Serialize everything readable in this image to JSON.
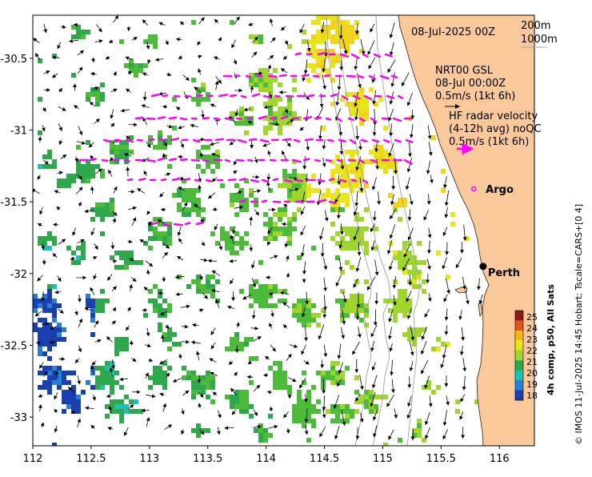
{
  "map": {
    "lon_ticks": [
      "112",
      "112.5",
      "113",
      "113.5",
      "114",
      "114.5",
      "115",
      "115.5",
      "116"
    ],
    "lat_ticks": [
      "-30.5",
      "-31",
      "-31.5",
      "-32",
      "-32.5",
      "-33"
    ],
    "lon_range": [
      112,
      116.3
    ],
    "lat_range": [
      -33.2,
      -30.2
    ],
    "date_label": "08-Jul-2025 00Z",
    "depth_legend": [
      "200m",
      "1000m"
    ],
    "gsl_title": "NRT00 GSL",
    "gsl_time": "08-Jul 00:00Z",
    "gsl_scale": "0.5m/s (1kt 6h)",
    "hf_title": "HF radar velocity",
    "hf_subtitle": "(4-12h avg) noQC",
    "hf_scale": "0.5m/s (1kt 6h)",
    "argo_label": "Argo",
    "city_label": "Perth",
    "city_lon": 115.86,
    "city_lat": -31.95,
    "argo_lon": 115.78,
    "argo_lat": -31.41,
    "side_credit": "© IMOS 11-Jul-2025 14:45 Hobart; Tscale=CARS+[0 4]",
    "colors": {
      "land": "#f9c89b",
      "hf_arrows": "#ff00ff",
      "gsl_arrows": "#000000",
      "isobaths": "#a0a0a0"
    }
  },
  "colorbar": {
    "title": "4h comp, p50, All Sats",
    "ticks": [
      "25",
      "24",
      "23",
      "22",
      "21",
      "20",
      "19",
      "18"
    ],
    "colors": [
      "#8b1a1a",
      "#e0561b",
      "#f2b81a",
      "#e6e61a",
      "#9ed62e",
      "#2ea84a",
      "#1ec2b4",
      "#2a7fd4",
      "#1a3fb0"
    ]
  }
}
